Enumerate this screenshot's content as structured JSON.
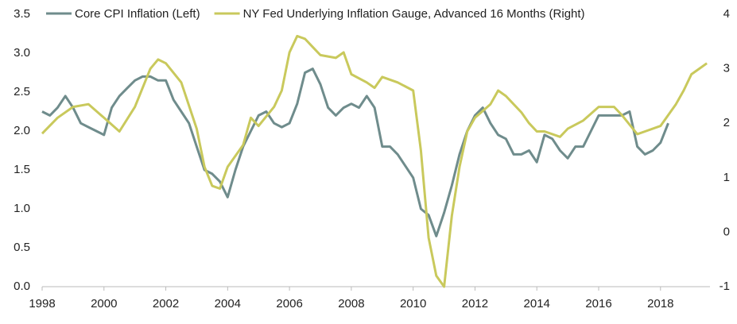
{
  "chart_data": {
    "type": "line",
    "xlim": [
      1998,
      2019.6
    ],
    "xticks": [
      1998,
      2000,
      2002,
      2004,
      2006,
      2008,
      2010,
      2012,
      2014,
      2016,
      2018
    ],
    "ylim": [
      0,
      3.5
    ],
    "yticks": [
      {
        "value": 0,
        "label": "0.0"
      },
      0.5,
      {
        "value": 1,
        "label": "1.0"
      },
      1.5,
      {
        "value": 2,
        "label": "2.0"
      },
      2.5,
      {
        "value": 3,
        "label": "3.0"
      },
      3.5
    ],
    "y2lim": [
      -1,
      4
    ],
    "y2ticks": [
      -1,
      0,
      1,
      2,
      3,
      4
    ],
    "grid": false,
    "legend": "top",
    "series": [
      {
        "name": "Core CPI Inflation (Left)",
        "color": "#6f8c8c",
        "axis": "y",
        "x": [
          1998,
          1998.25,
          1998.5,
          1998.75,
          1999,
          1999.25,
          1999.5,
          1999.75,
          2000,
          2000.25,
          2000.5,
          2000.75,
          2001,
          2001.25,
          2001.5,
          2001.75,
          2002,
          2002.25,
          2002.5,
          2002.75,
          2003,
          2003.25,
          2003.5,
          2003.75,
          2004,
          2004.25,
          2004.5,
          2004.75,
          2005,
          2005.25,
          2005.5,
          2005.75,
          2006,
          2006.25,
          2006.5,
          2006.75,
          2007,
          2007.25,
          2007.5,
          2007.75,
          2008,
          2008.25,
          2008.5,
          2008.75,
          2009,
          2009.25,
          2009.5,
          2009.75,
          2010,
          2010.25,
          2010.5,
          2010.75,
          2011,
          2011.25,
          2011.5,
          2011.75,
          2012,
          2012.25,
          2012.5,
          2012.75,
          2013,
          2013.25,
          2013.5,
          2013.75,
          2014,
          2014.25,
          2014.5,
          2014.75,
          2015,
          2015.25,
          2015.5,
          2015.75,
          2016,
          2016.25,
          2016.5,
          2016.75,
          2017,
          2017.25,
          2017.5,
          2017.75,
          2018,
          2018.25
        ],
        "values": [
          2.25,
          2.2,
          2.3,
          2.45,
          2.3,
          2.1,
          2.05,
          2.0,
          1.95,
          2.3,
          2.45,
          2.55,
          2.65,
          2.7,
          2.7,
          2.65,
          2.65,
          2.4,
          2.25,
          2.1,
          1.8,
          1.5,
          1.45,
          1.35,
          1.15,
          1.5,
          1.8,
          2.0,
          2.2,
          2.25,
          2.1,
          2.05,
          2.1,
          2.35,
          2.75,
          2.8,
          2.6,
          2.3,
          2.2,
          2.3,
          2.35,
          2.3,
          2.45,
          2.3,
          1.8,
          1.8,
          1.7,
          1.55,
          1.4,
          1.0,
          0.92,
          0.65,
          0.95,
          1.3,
          1.7,
          2.0,
          2.2,
          2.3,
          2.1,
          1.95,
          1.9,
          1.7,
          1.7,
          1.75,
          1.6,
          1.95,
          1.9,
          1.75,
          1.65,
          1.8,
          1.8,
          2.0,
          2.2,
          2.2,
          2.2,
          2.2,
          2.25,
          1.8,
          1.7,
          1.75,
          1.85,
          2.1
        ]
      },
      {
        "name": "NY Fed Underlying Inflation Gauge, Advanced 16 Months (Right)",
        "color": "#c9c95c",
        "axis": "y2",
        "x": [
          1998,
          1998.5,
          1999,
          1999.5,
          2000,
          2000.5,
          2001,
          2001.5,
          2001.75,
          2002,
          2002.5,
          2003,
          2003.25,
          2003.5,
          2003.75,
          2004,
          2004.5,
          2004.75,
          2005,
          2005.5,
          2005.75,
          2006,
          2006.25,
          2006.5,
          2006.75,
          2007,
          2007.5,
          2007.75,
          2008,
          2008.5,
          2008.75,
          2009,
          2009.5,
          2010,
          2010.25,
          2010.5,
          2010.75,
          2011,
          2011.25,
          2011.5,
          2011.75,
          2012,
          2012.5,
          2012.75,
          2013,
          2013.5,
          2013.75,
          2014,
          2014.25,
          2014.75,
          2015,
          2015.5,
          2016,
          2016.5,
          2016.75,
          2017.25,
          2017.5,
          2018,
          2018.5,
          2018.75,
          2019,
          2019.25,
          2019.5
        ],
        "values": [
          1.81,
          2.1,
          2.3,
          2.35,
          2.1,
          1.85,
          2.3,
          3.0,
          3.17,
          3.1,
          2.75,
          1.9,
          1.2,
          0.85,
          0.8,
          1.2,
          1.6,
          2.1,
          1.95,
          2.3,
          2.6,
          3.3,
          3.6,
          3.55,
          3.4,
          3.25,
          3.2,
          3.3,
          2.9,
          2.75,
          2.65,
          2.85,
          2.75,
          2.6,
          1.5,
          -0.1,
          -0.8,
          -1.0,
          0.3,
          1.2,
          1.85,
          2.1,
          2.35,
          2.6,
          2.5,
          2.2,
          2.0,
          1.85,
          1.85,
          1.75,
          1.9,
          2.05,
          2.3,
          2.3,
          2.15,
          1.8,
          1.85,
          1.95,
          2.35,
          2.6,
          2.9,
          3.0,
          3.1
        ]
      }
    ]
  }
}
